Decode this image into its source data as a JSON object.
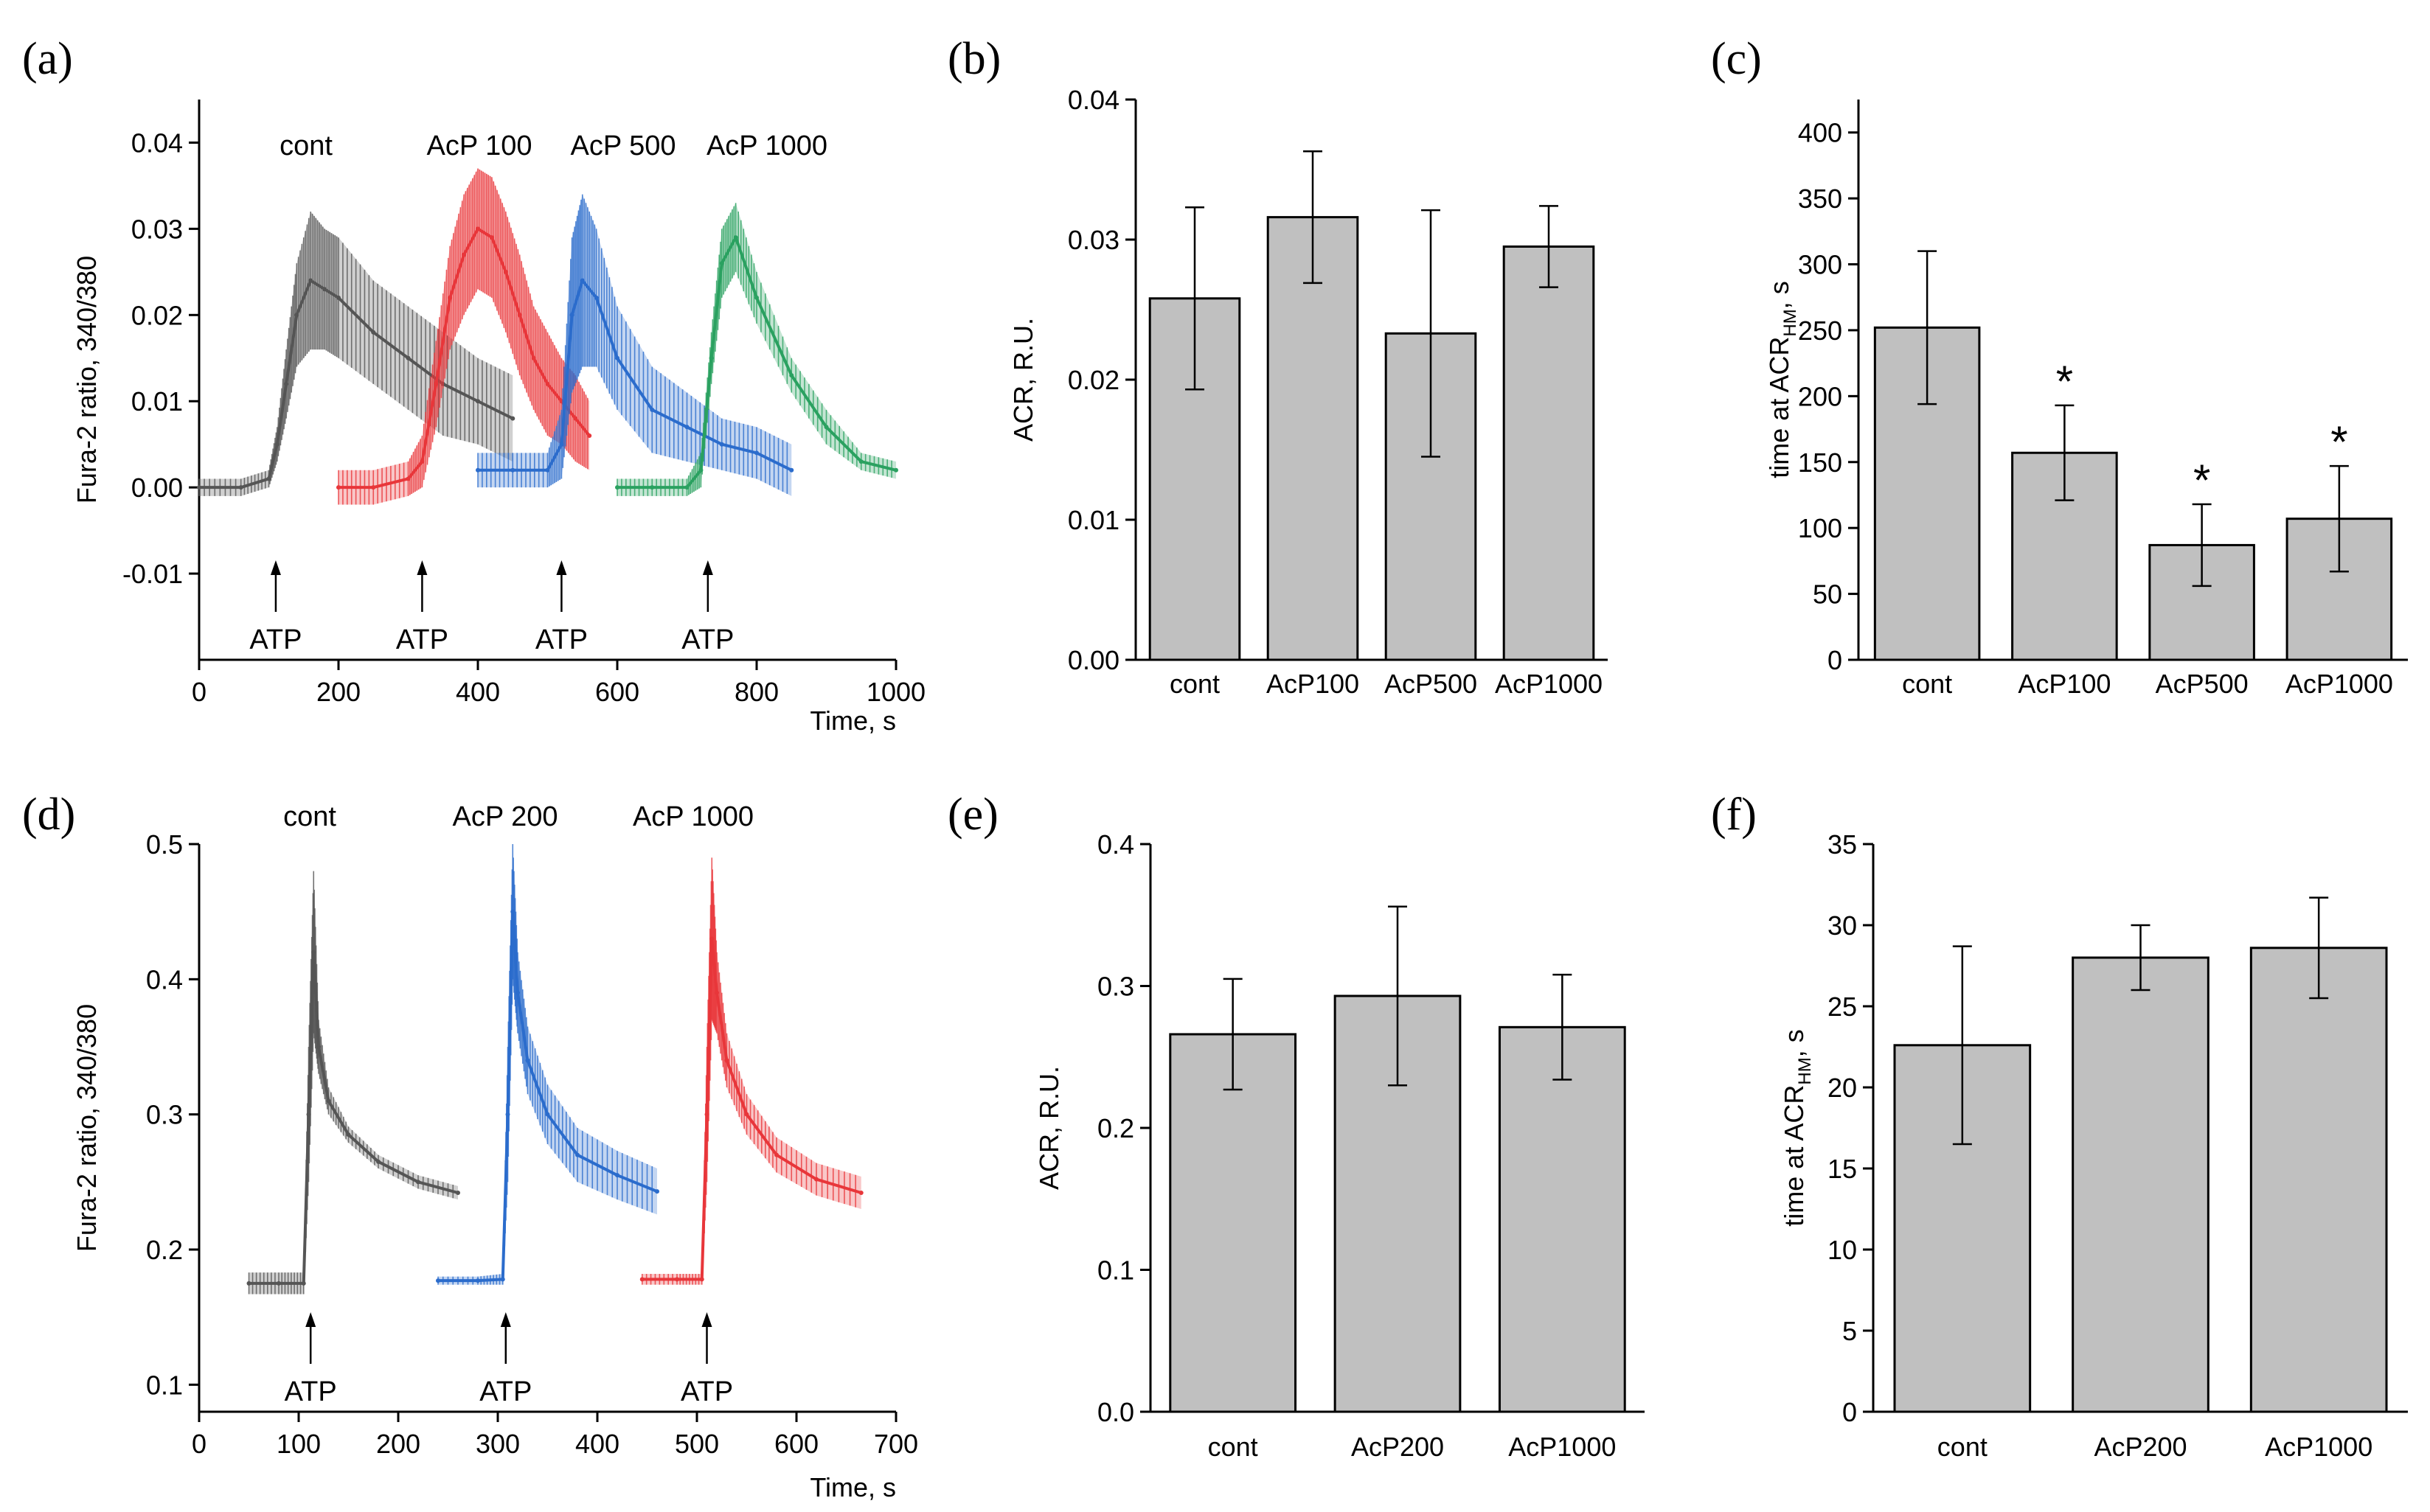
{
  "chart_data": [
    {
      "panel": "(a)",
      "type": "line",
      "xlabel": "Time, s",
      "ylabel": "Fura-2 ratio, 340/380",
      "xlim": [
        0,
        1000
      ],
      "ylim": [
        -0.02,
        0.045
      ],
      "xticks": [
        "0",
        "200",
        "400",
        "600",
        "800",
        "1000"
      ],
      "yticks": [
        "-0.01",
        "0.00",
        "0.01",
        "0.02",
        "0.03",
        "0.04"
      ],
      "series": [
        {
          "name": "cont",
          "color": "#555555",
          "x": [
            0,
            60,
            100,
            112,
            125,
            140,
            160,
            180,
            200,
            250,
            300,
            350,
            400,
            450
          ],
          "y": [
            0.0,
            0.0,
            0.001,
            0.005,
            0.012,
            0.02,
            0.024,
            0.023,
            0.022,
            0.018,
            0.015,
            0.012,
            0.01,
            0.008
          ],
          "err": [
            0.001,
            0.001,
            0.001,
            0.002,
            0.004,
            0.006,
            0.008,
            0.007,
            0.007,
            0.006,
            0.006,
            0.006,
            0.005,
            0.005
          ]
        },
        {
          "name": "AcP 100",
          "color": "#e8363a",
          "x": [
            200,
            250,
            300,
            320,
            340,
            360,
            380,
            400,
            420,
            440,
            460,
            480,
            500,
            520,
            540,
            560
          ],
          "y": [
            0.0,
            0.0,
            0.001,
            0.003,
            0.012,
            0.022,
            0.027,
            0.03,
            0.029,
            0.025,
            0.02,
            0.015,
            0.012,
            0.01,
            0.008,
            0.006
          ],
          "err": [
            0.002,
            0.002,
            0.002,
            0.003,
            0.005,
            0.006,
            0.007,
            0.007,
            0.007,
            0.007,
            0.007,
            0.006,
            0.006,
            0.005,
            0.005,
            0.004
          ]
        },
        {
          "name": "AcP 500",
          "color": "#2b6ccc",
          "x": [
            400,
            450,
            500,
            520,
            535,
            550,
            570,
            600,
            650,
            700,
            750,
            800,
            850
          ],
          "y": [
            0.002,
            0.002,
            0.002,
            0.005,
            0.02,
            0.024,
            0.022,
            0.015,
            0.009,
            0.007,
            0.005,
            0.004,
            0.002
          ],
          "err": [
            0.002,
            0.002,
            0.002,
            0.004,
            0.009,
            0.01,
            0.008,
            0.006,
            0.005,
            0.004,
            0.003,
            0.003,
            0.003
          ]
        },
        {
          "name": "AcP 1000",
          "color": "#2aa160",
          "x": [
            600,
            650,
            700,
            720,
            735,
            750,
            770,
            800,
            850,
            900,
            950,
            1000
          ],
          "y": [
            0.0,
            0.0,
            0.0,
            0.002,
            0.015,
            0.026,
            0.029,
            0.022,
            0.013,
            0.007,
            0.003,
            0.002
          ],
          "err": [
            0.001,
            0.001,
            0.001,
            0.002,
            0.003,
            0.004,
            0.004,
            0.003,
            0.002,
            0.002,
            0.001,
            0.001
          ]
        }
      ],
      "annotations": [
        "cont",
        "AcP 100",
        "AcP 500",
        "AcP 1000"
      ],
      "atp": {
        "label": "ATP",
        "times": [
          110,
          320,
          520,
          730
        ]
      }
    },
    {
      "panel": "(b)",
      "type": "bar",
      "ylabel": "ACR, R.U.",
      "categories": [
        "cont",
        "AcP100",
        "AcP500",
        "AcP1000"
      ],
      "values": [
        0.0258,
        0.0316,
        0.0233,
        0.0295
      ],
      "errors": [
        0.0065,
        0.0047,
        0.0088,
        0.0029
      ],
      "ylim": [
        0,
        0.04
      ],
      "yticks": [
        "0.00",
        "0.01",
        "0.02",
        "0.03",
        "0.04"
      ],
      "bar_color": "#c0c0c0"
    },
    {
      "panel": "(c)",
      "type": "bar",
      "ylabel_main": "time at ACR",
      "ylabel_sub": "HM",
      "ylabel_end": ", s",
      "categories": [
        "cont",
        "AcP100",
        "AcP500",
        "AcP1000"
      ],
      "values": [
        252,
        157,
        87,
        107
      ],
      "errors": [
        58,
        36,
        31,
        40
      ],
      "significant": [
        "",
        "*",
        "*",
        "*"
      ],
      "ylim": [
        0,
        425
      ],
      "yticks": [
        "0",
        "50",
        "100",
        "150",
        "200",
        "250",
        "300",
        "350",
        "400"
      ],
      "bar_color": "#c0c0c0"
    },
    {
      "panel": "(d)",
      "type": "line",
      "xlabel": "Time, s",
      "ylabel": "Fura-2 ratio, 340/380",
      "xlim": [
        0,
        700
      ],
      "ylim": [
        0.08,
        0.5
      ],
      "xticks": [
        "0",
        "100",
        "200",
        "300",
        "400",
        "500",
        "600",
        "700"
      ],
      "yticks": [
        "0.1",
        "0.2",
        "0.3",
        "0.4",
        "0.5"
      ],
      "series": [
        {
          "name": "cont",
          "color": "#555555",
          "x": [
            50,
            80,
            105,
            110,
            115,
            120,
            130,
            150,
            180,
            220,
            260
          ],
          "y": [
            0.175,
            0.175,
            0.175,
            0.3,
            0.42,
            0.35,
            0.31,
            0.285,
            0.265,
            0.25,
            0.242
          ],
          "err": [
            0.008,
            0.008,
            0.008,
            0.05,
            0.06,
            0.02,
            0.01,
            0.006,
            0.005,
            0.005,
            0.005
          ]
        },
        {
          "name": "AcP 200",
          "color": "#2b6ccc",
          "x": [
            240,
            280,
            305,
            310,
            315,
            320,
            330,
            350,
            380,
            420,
            460
          ],
          "y": [
            0.177,
            0.177,
            0.178,
            0.3,
            0.45,
            0.39,
            0.34,
            0.3,
            0.27,
            0.255,
            0.243
          ],
          "err": [
            0.003,
            0.003,
            0.004,
            0.05,
            0.05,
            0.03,
            0.025,
            0.022,
            0.02,
            0.018,
            0.017
          ]
        },
        {
          "name": "AcP 1000",
          "color": "#e8363a",
          "x": [
            445,
            480,
            505,
            510,
            515,
            520,
            530,
            550,
            580,
            620,
            665
          ],
          "y": [
            0.178,
            0.178,
            0.178,
            0.3,
            0.43,
            0.39,
            0.34,
            0.3,
            0.27,
            0.252,
            0.242
          ],
          "err": [
            0.004,
            0.004,
            0.004,
            0.05,
            0.06,
            0.03,
            0.02,
            0.015,
            0.013,
            0.012,
            0.012
          ]
        }
      ],
      "annotations": [
        "cont",
        "AcP 200",
        "AcP 1000"
      ],
      "atp": {
        "label": "ATP",
        "times": [
          112,
          308,
          510
        ]
      }
    },
    {
      "panel": "(e)",
      "type": "bar",
      "ylabel": "ACR, R.U.",
      "categories": [
        "cont",
        "AcP200",
        "AcP1000"
      ],
      "values": [
        0.266,
        0.293,
        0.271
      ],
      "errors": [
        0.039,
        0.063,
        0.037
      ],
      "ylim": [
        0,
        0.4
      ],
      "yticks": [
        "0.0",
        "0.1",
        "0.2",
        "0.3",
        "0.4"
      ],
      "bar_color": "#c0c0c0"
    },
    {
      "panel": "(f)",
      "type": "bar",
      "ylabel_main": "time at ACR",
      "ylabel_sub": "HM",
      "ylabel_end": ", s",
      "categories": [
        "cont",
        "AcP200",
        "AcP1000"
      ],
      "values": [
        22.6,
        28.0,
        28.6
      ],
      "errors": [
        6.1,
        2.0,
        3.1
      ],
      "ylim": [
        0,
        35
      ],
      "yticks": [
        "0",
        "5",
        "10",
        "15",
        "20",
        "25",
        "30",
        "35"
      ],
      "bar_color": "#c0c0c0"
    }
  ]
}
